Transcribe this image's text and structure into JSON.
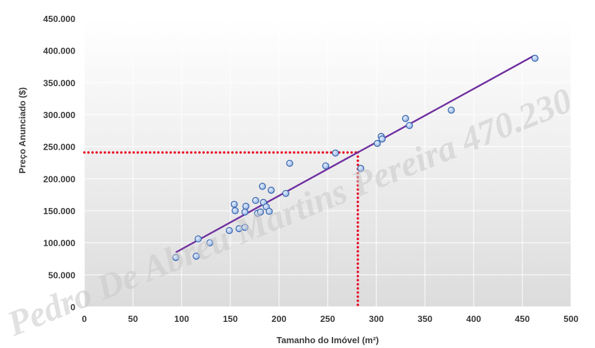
{
  "chart_data": {
    "type": "scatter",
    "xlabel": "Tamanho do Imóvel (m²)",
    "ylabel": "Preço Anunciado ($)",
    "xlim": [
      0,
      500
    ],
    "ylim": [
      0,
      450000
    ],
    "x_ticks": [
      0,
      50,
      100,
      150,
      200,
      250,
      300,
      350,
      400,
      450,
      500
    ],
    "x_tick_labels": [
      "0",
      "50",
      "100",
      "150",
      "200",
      "250",
      "300",
      "350",
      "400",
      "450",
      "500"
    ],
    "y_ticks": [
      0,
      50000,
      100000,
      150000,
      200000,
      250000,
      300000,
      350000,
      400000,
      450000
    ],
    "y_tick_labels": [
      "0",
      "50.000",
      "100.000",
      "150.000",
      "200.000",
      "250.000",
      "300.000",
      "350.000",
      "400.000",
      "450.000"
    ],
    "grid": true,
    "points": [
      {
        "x": 94,
        "y": 77000
      },
      {
        "x": 115,
        "y": 79000
      },
      {
        "x": 117,
        "y": 106000
      },
      {
        "x": 129,
        "y": 100000
      },
      {
        "x": 149,
        "y": 119000
      },
      {
        "x": 154,
        "y": 160000
      },
      {
        "x": 155,
        "y": 150000
      },
      {
        "x": 159,
        "y": 122000
      },
      {
        "x": 165,
        "y": 124000
      },
      {
        "x": 165,
        "y": 148000
      },
      {
        "x": 166,
        "y": 157000
      },
      {
        "x": 176,
        "y": 166000
      },
      {
        "x": 178,
        "y": 146000
      },
      {
        "x": 181,
        "y": 148000
      },
      {
        "x": 183,
        "y": 188000
      },
      {
        "x": 184,
        "y": 163000
      },
      {
        "x": 187,
        "y": 156000
      },
      {
        "x": 190,
        "y": 149000
      },
      {
        "x": 192,
        "y": 182000
      },
      {
        "x": 207,
        "y": 177000
      },
      {
        "x": 211,
        "y": 224000
      },
      {
        "x": 248,
        "y": 220000
      },
      {
        "x": 258,
        "y": 240000
      },
      {
        "x": 284,
        "y": 216000
      },
      {
        "x": 301,
        "y": 255000
      },
      {
        "x": 305,
        "y": 266000
      },
      {
        "x": 306,
        "y": 262000
      },
      {
        "x": 330,
        "y": 294000
      },
      {
        "x": 334,
        "y": 283000
      },
      {
        "x": 377,
        "y": 307000
      },
      {
        "x": 463,
        "y": 388000
      }
    ],
    "trendline": {
      "x": [
        94,
        462
      ],
      "y": [
        85000,
        392000
      ]
    },
    "reference_lines": {
      "x": 281,
      "y": 241000
    }
  },
  "watermark": "Pedro De Abreu Martins Pereira 470.230",
  "colors": {
    "point_fill": "#a9c4ee",
    "point_stroke": "#3461a8",
    "trendline": "#7030a0",
    "reference": "#e8001c",
    "plot_bg_top": "#ffffff",
    "plot_bg_bottom": "#dcdcdc",
    "grid": "#ffffff"
  }
}
